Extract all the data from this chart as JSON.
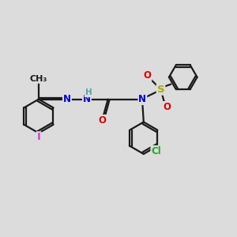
{
  "bg_color": "#dcdcdc",
  "bond_color": "#1a1a1a",
  "bond_width": 1.6,
  "atom_colors": {
    "N": "#0000cc",
    "H": "#4fa8a8",
    "O": "#dd0000",
    "S": "#aaaa00",
    "I": "#cc44cc",
    "Cl": "#22aa22",
    "C": "#1a1a1a"
  },
  "font_size": 8.5,
  "figsize": [
    3.0,
    3.0
  ],
  "dpi": 100,
  "xlim": [
    0,
    10
  ],
  "ylim": [
    0,
    10
  ]
}
